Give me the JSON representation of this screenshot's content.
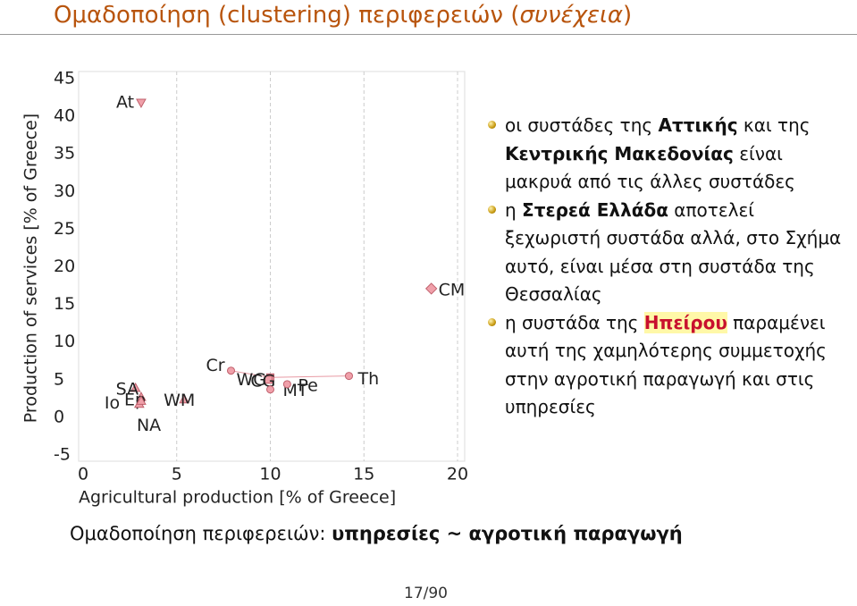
{
  "header": {
    "title": [
      {
        "text": "Ομαδοποίηση (clustering) περιφερειών ("
      },
      {
        "text": "συνέχεια",
        "italic": true
      },
      {
        "text": ")"
      }
    ]
  },
  "chart_data": {
    "type": "scatter",
    "xlabel": "Agricultural production [% of Greece]",
    "ylabel": "Production of services [% of Greece]",
    "point_labels": [
      "At",
      "Cr",
      "WG",
      "CG",
      "MT",
      "Pe",
      "Th",
      "CM",
      "SA",
      "Ep",
      "Io",
      "WM",
      "NA"
    ],
    "x": [
      3.1,
      7.9,
      10.0,
      9.9,
      10.0,
      10.9,
      14.2,
      18.6,
      2.8,
      3.1,
      3.0,
      5.4,
      3.1
    ],
    "values": [
      41.8,
      6.2,
      5.3,
      5.0,
      3.7,
      4.4,
      5.5,
      17.1,
      3.9,
      2.7,
      1.8,
      2.4,
      2.2
    ],
    "shapes": [
      "triangle-down",
      "circle",
      "square",
      "square",
      "circle",
      "circle",
      "circle",
      "diamond",
      "triangle",
      "triangle",
      "triangle",
      "triangle",
      "triangle"
    ],
    "color": "#f0a0aa",
    "xlim": [
      0,
      20
    ],
    "xticks": [
      0,
      5,
      10,
      15,
      20
    ],
    "ylim": [
      -5,
      45
    ],
    "yticks": [
      -5,
      0,
      5,
      10,
      15,
      20,
      25,
      30,
      35,
      40,
      45
    ],
    "grid": "x"
  },
  "bullets": [
    [
      {
        "text": "οι συστάδες της "
      },
      {
        "text": "Αττικής",
        "bold": true
      },
      {
        "text": " και της "
      },
      {
        "text": "Κεντρικής Μακεδονίας",
        "bold": true
      },
      {
        "text": " είναι μακρυά από τις άλλες συστάδες"
      }
    ],
    [
      {
        "text": "η "
      },
      {
        "text": "Στερεά Ελλάδα",
        "bold": true
      },
      {
        "text": " αποτελεί ξεχωριστή συστάδα αλλά, στο Σχήμα αυτό, είναι μέσα στη συστάδα της Θεσσαλίας"
      }
    ],
    [
      {
        "text": "η συστάδα της "
      },
      {
        "text": "Ηπείρου",
        "bold": true,
        "highlight": true
      },
      {
        "text": " παραμένει αυτή της χαμηλότερης συμμετοχής στην αγροτική παραγωγή και στις υπηρεσίες"
      }
    ]
  ],
  "caption": [
    {
      "text": "Ομαδοποίηση περιφερειών: "
    },
    {
      "text": "υπηρεσίες ~ αγροτική παραγωγή",
      "bold": true
    }
  ],
  "page_number": "17/90"
}
